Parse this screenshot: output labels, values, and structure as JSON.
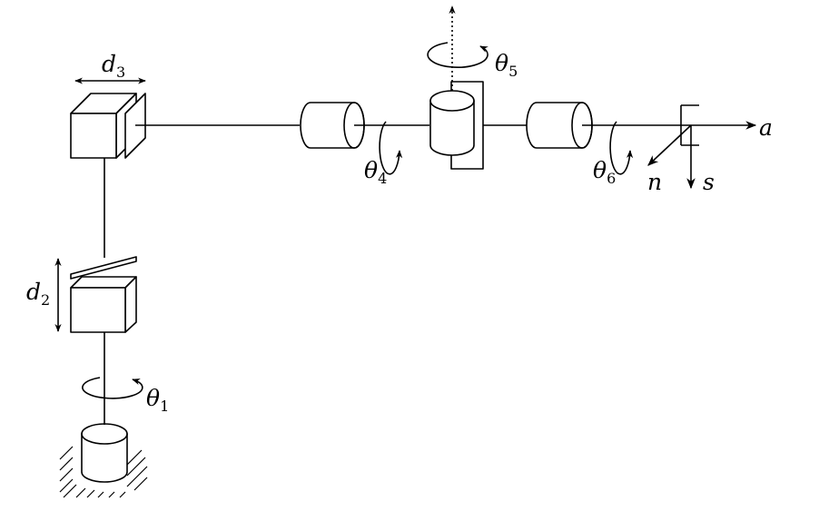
{
  "labels": {
    "d3": {
      "main": "d",
      "sub": "3"
    },
    "d2": {
      "main": "d",
      "sub": "2"
    },
    "theta1": {
      "main": "θ",
      "sub": "1"
    },
    "theta4": {
      "main": "θ",
      "sub": "4"
    },
    "theta5": {
      "main": "θ",
      "sub": "5"
    },
    "theta6": {
      "main": "θ",
      "sub": "6"
    },
    "axis_a": "a",
    "axis_n": "n",
    "axis_s": "s"
  }
}
